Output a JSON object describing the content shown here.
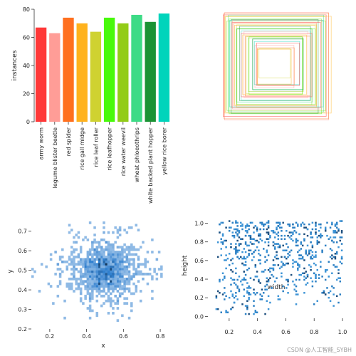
{
  "chart_data": [
    {
      "type": "bar",
      "title": "",
      "xlabel": "",
      "ylabel": "instances",
      "ylim": [
        0,
        80
      ],
      "yticks": [
        0,
        20,
        40,
        60,
        80
      ],
      "categories": [
        "army worm",
        "legume blister beetle",
        "red spider",
        "rice gall midge",
        "rice leaf roller",
        "rice leafhopper",
        "rice water weevil",
        "wheat phloeothrips",
        "white backed plant hopper",
        "yellow rice borer"
      ],
      "values": [
        67,
        63,
        74,
        70,
        64,
        74,
        70,
        76,
        71,
        77
      ],
      "colors": [
        "#ff3838",
        "#ff9d97",
        "#ff701f",
        "#ffb21d",
        "#cfd231",
        "#48f90a",
        "#92cc17",
        "#3ddb86",
        "#1a9334",
        "#00d4bb"
      ],
      "grid": false
    },
    {
      "type": "heatmap",
      "description": "overlaid label box outlines centered on canvas",
      "title": "",
      "box_sizes": [
        0.98,
        0.96,
        0.95,
        0.93,
        0.92,
        0.9,
        0.88,
        0.87,
        0.85,
        0.84,
        0.82,
        0.8,
        0.78,
        0.76,
        0.74,
        0.72,
        0.7,
        0.68,
        0.66,
        0.64,
        0.62,
        0.6,
        0.58,
        0.56,
        0.54,
        0.52,
        0.5,
        0.47,
        0.45,
        0.42,
        0.4,
        0.37,
        0.34,
        0.31,
        0.28
      ],
      "colors": [
        "#ff3838",
        "#ff9d97",
        "#ff701f",
        "#ffb21d",
        "#cfd231",
        "#48f90a",
        "#92cc17",
        "#3ddb86",
        "#1a9334",
        "#00d4bb"
      ],
      "axis": "off"
    },
    {
      "type": "heatmap",
      "title": "",
      "xlabel": "x",
      "ylabel": "y",
      "xlim": [
        0.1,
        0.85
      ],
      "ylim": [
        0.2,
        0.75
      ],
      "xticks": [
        0.2,
        0.4,
        0.6,
        0.8
      ],
      "yticks": [
        0.2,
        0.3,
        0.4,
        0.5,
        0.6,
        0.7
      ],
      "center": [
        0.5,
        0.5
      ],
      "spread": [
        0.09,
        0.07
      ],
      "color": "#4a90d9"
    },
    {
      "type": "heatmap",
      "title": "",
      "xlabel": "width",
      "ylabel": "height",
      "xlim": [
        0.05,
        1.02
      ],
      "ylim": [
        -0.02,
        1.05
      ],
      "xticks": [
        0.2,
        0.4,
        0.6,
        0.8,
        1.0
      ],
      "yticks": [
        0.0,
        0.2,
        0.4,
        0.6,
        0.8,
        1.0
      ],
      "color": "#2a7fc4"
    }
  ],
  "watermark": "CSDN @人工智能_SYBH"
}
